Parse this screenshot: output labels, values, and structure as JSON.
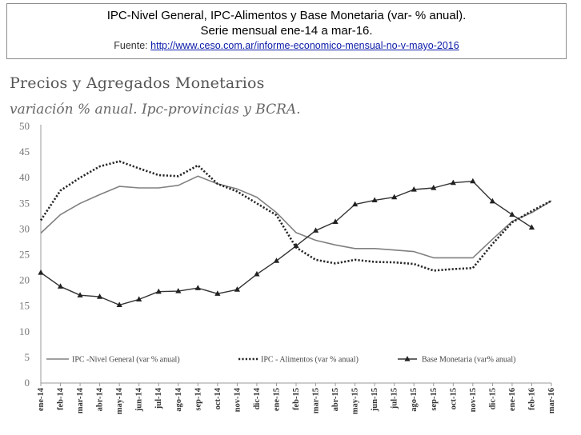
{
  "header": {
    "line1": "IPC-Nivel General, IPC-Alimentos y Base Monetaria (var- % anual).",
    "line2": "Serie mensual ene-14 a mar-16.",
    "source_prefix": "Fuente: ",
    "source_link": "http://www.ceso.com.ar/informe-economico-mensual-no-v-mayo-2016"
  },
  "chart_data": {
    "type": "line",
    "title": "Precios y Agregados Monetarios",
    "subtitle": "variación % anual. Ipc-provincias y BCRA.",
    "xlabel": "",
    "ylabel": "",
    "ylim": [
      0,
      50
    ],
    "yticks": [
      "0",
      "5",
      "10",
      "15",
      "20",
      "25",
      "30",
      "35",
      "40",
      "45",
      "50"
    ],
    "grid": false,
    "legend_position": "bottom",
    "categories": [
      "ene-14",
      "feb-14",
      "mar-14",
      "abr-14",
      "may-14",
      "jun-14",
      "jul-14",
      "ago-14",
      "sep-14",
      "oct-14",
      "nov-14",
      "dic-14",
      "ene-15",
      "feb-15",
      "mar-15",
      "abr-15",
      "may-15",
      "jun-15",
      "jul-15",
      "ago-15",
      "sep-15",
      "oct-15",
      "nov-15",
      "dic-15",
      "ene-16",
      "feb-16",
      "mar-16"
    ],
    "series": [
      {
        "name": "IPC -Nivel General (var % anual)",
        "style": "solid",
        "color": "#808080",
        "values": [
          29.2,
          32.8,
          35.0,
          36.7,
          38.3,
          38.0,
          38.0,
          38.5,
          40.3,
          38.8,
          37.8,
          36.2,
          33.2,
          29.3,
          27.8,
          26.9,
          26.2,
          26.2,
          25.9,
          25.6,
          24.4,
          24.4,
          24.4,
          28.0,
          31.5,
          33.2,
          35.5
        ]
      },
      {
        "name": "IPC - Alimentos (var % anual)",
        "style": "dotted",
        "color": "#262626",
        "values": [
          31.7,
          37.5,
          40.0,
          42.2,
          43.2,
          41.8,
          40.5,
          40.3,
          42.4,
          38.8,
          37.3,
          35.0,
          32.7,
          26.4,
          24.0,
          23.3,
          24.0,
          23.6,
          23.5,
          23.2,
          21.9,
          22.2,
          22.4,
          27.1,
          31.3,
          33.5,
          35.5
        ]
      },
      {
        "name": "Base Monetaria (var% anual)",
        "style": "solid-triangle",
        "color": "#333333",
        "values": [
          21.5,
          18.8,
          17.1,
          16.8,
          15.2,
          16.3,
          17.8,
          17.9,
          18.5,
          17.4,
          18.2,
          21.2,
          23.8,
          26.7,
          29.7,
          31.4,
          34.8,
          35.6,
          36.2,
          37.7,
          38.0,
          39.0,
          39.3,
          35.4,
          32.8,
          30.3,
          null
        ]
      }
    ]
  }
}
